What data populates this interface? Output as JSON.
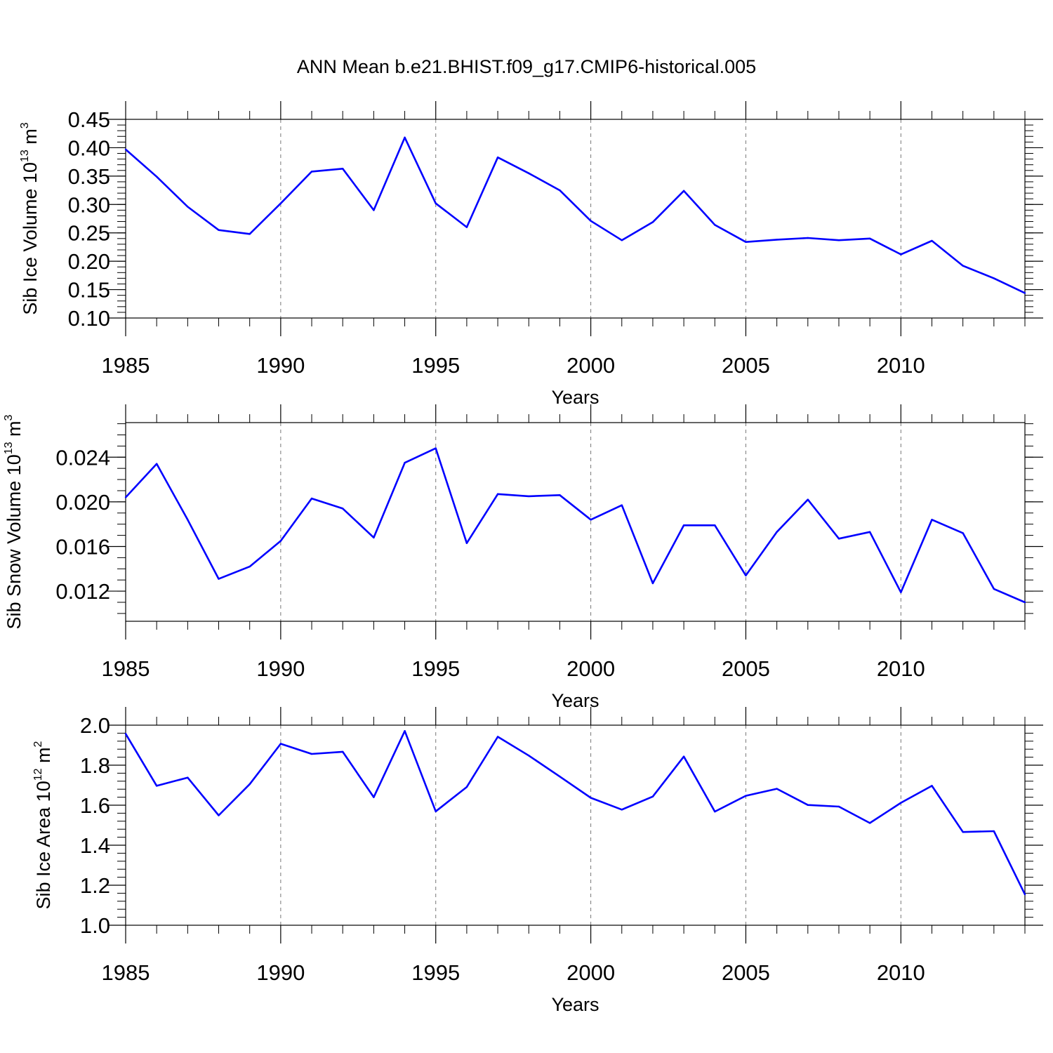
{
  "title": "ANN Mean b.e21.BHIST.f09_g17.CMIP6-historical.005",
  "colors": {
    "line": "#0000ff",
    "axis": "#000000",
    "grid": "#777777"
  },
  "chart_data": [
    {
      "type": "line",
      "xlabel": "Years",
      "ylabel": {
        "text": "Sib Ice Volume 10",
        "exp": "13",
        "unit": " m",
        "unit_exp": "3"
      },
      "xlim": [
        1985,
        2014
      ],
      "ylim": [
        0.1,
        0.45
      ],
      "xticks": [
        1985,
        1990,
        1995,
        2000,
        2005,
        2010
      ],
      "xtick_labels": [
        "1985",
        "1990",
        "1995",
        "2000",
        "2005",
        "2010"
      ],
      "yticks": [
        0.1,
        0.15,
        0.2,
        0.25,
        0.3,
        0.35,
        0.4,
        0.45
      ],
      "ytick_labels": [
        "0.10",
        "0.15",
        "0.20",
        "0.25",
        "0.30",
        "0.35",
        "0.40",
        "0.45"
      ],
      "x_minor_step": 1,
      "y_minor_step": 0.01,
      "grid": "dashed vertical at major x ticks",
      "x": [
        1985,
        1986,
        1987,
        1988,
        1989,
        1990,
        1991,
        1992,
        1993,
        1994,
        1995,
        1996,
        1997,
        1998,
        1999,
        2000,
        2001,
        2002,
        2003,
        2004,
        2005,
        2006,
        2007,
        2008,
        2009,
        2010,
        2011,
        2012,
        2013,
        2014
      ],
      "values": [
        0.397,
        0.349,
        0.296,
        0.255,
        0.248,
        0.302,
        0.358,
        0.363,
        0.29,
        0.418,
        0.302,
        0.26,
        0.383,
        0.355,
        0.325,
        0.271,
        0.237,
        0.269,
        0.324,
        0.264,
        0.234,
        0.238,
        0.241,
        0.237,
        0.24,
        0.212,
        0.236,
        0.192,
        0.17,
        0.144
      ]
    },
    {
      "type": "line",
      "xlabel": "Years",
      "ylabel": {
        "text": "Sib Snow Volume 10",
        "exp": "13",
        "unit": " m",
        "unit_exp": "3"
      },
      "xlim": [
        1985,
        2014
      ],
      "ylim": [
        0.0093,
        0.0271
      ],
      "xticks": [
        1985,
        1990,
        1995,
        2000,
        2005,
        2010
      ],
      "xtick_labels": [
        "1985",
        "1990",
        "1995",
        "2000",
        "2005",
        "2010"
      ],
      "yticks": [
        0.012,
        0.016,
        0.02,
        0.024
      ],
      "ytick_labels": [
        "0.012",
        "0.016",
        "0.020",
        "0.024"
      ],
      "x_minor_step": 1,
      "y_minor_step": 0.001,
      "grid": "dashed vertical at major x ticks",
      "x": [
        1985,
        1986,
        1987,
        1988,
        1989,
        1990,
        1991,
        1992,
        1993,
        1994,
        1995,
        1996,
        1997,
        1998,
        1999,
        2000,
        2001,
        2002,
        2003,
        2004,
        2005,
        2006,
        2007,
        2008,
        2009,
        2010,
        2011,
        2012,
        2013,
        2014
      ],
      "values": [
        0.0204,
        0.0234,
        0.0184,
        0.0131,
        0.0142,
        0.0165,
        0.0203,
        0.0194,
        0.0168,
        0.0235,
        0.0248,
        0.0163,
        0.0207,
        0.0205,
        0.0206,
        0.0184,
        0.0197,
        0.0127,
        0.0179,
        0.0179,
        0.0134,
        0.0173,
        0.0202,
        0.0167,
        0.0173,
        0.0119,
        0.0184,
        0.0172,
        0.0122,
        0.011
      ]
    },
    {
      "type": "line",
      "xlabel": "Years",
      "ylabel": {
        "text": "Sib Ice Area 10",
        "exp": "12",
        "unit": " m",
        "unit_exp": "2"
      },
      "xlim": [
        1985,
        2014
      ],
      "ylim": [
        1.0,
        2.0
      ],
      "xticks": [
        1985,
        1990,
        1995,
        2000,
        2005,
        2010
      ],
      "xtick_labels": [
        "1985",
        "1990",
        "1995",
        "2000",
        "2005",
        "2010"
      ],
      "yticks": [
        1.0,
        1.2,
        1.4,
        1.6,
        1.8,
        2.0
      ],
      "ytick_labels": [
        "1.0",
        "1.2",
        "1.4",
        "1.6",
        "1.8",
        "2.0"
      ],
      "x_minor_step": 1,
      "y_minor_step": 0.04,
      "grid": "dashed vertical at major x ticks",
      "x": [
        1985,
        1986,
        1987,
        1988,
        1989,
        1990,
        1991,
        1992,
        1993,
        1994,
        1995,
        1996,
        1997,
        1998,
        1999,
        2000,
        2001,
        2002,
        2003,
        2004,
        2005,
        2006,
        2007,
        2008,
        2009,
        2010,
        2011,
        2012,
        2013,
        2014
      ],
      "values": [
        1.957,
        1.697,
        1.738,
        1.549,
        1.705,
        1.907,
        1.856,
        1.867,
        1.64,
        1.971,
        1.569,
        1.691,
        1.942,
        1.848,
        1.743,
        1.637,
        1.578,
        1.643,
        1.843,
        1.568,
        1.647,
        1.682,
        1.601,
        1.593,
        1.511,
        1.612,
        1.697,
        1.466,
        1.47,
        1.154
      ]
    }
  ]
}
